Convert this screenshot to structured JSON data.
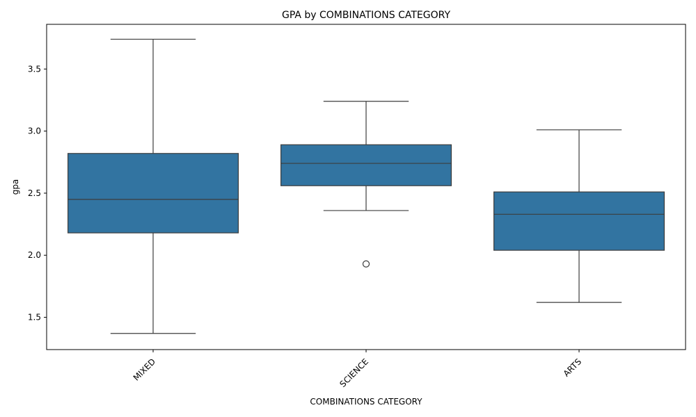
{
  "chart_data": {
    "type": "box",
    "title": "GPA by COMBINATIONS CATEGORY",
    "xlabel": "COMBINATIONS CATEGORY",
    "ylabel": "gpa",
    "ylim": [
      1.24,
      3.86
    ],
    "yticks": [
      1.5,
      2.0,
      2.5,
      3.0,
      3.5
    ],
    "y_tick_labels": [
      "1.5",
      "2.0",
      "2.5",
      "3.0",
      "3.5"
    ],
    "x_tick_rotation": 45,
    "grid": false,
    "box_color": "#3274a1",
    "line_color": "#3d3d3d",
    "categories": [
      "MIXED",
      "SCIENCE",
      "ARTS"
    ],
    "boxes": [
      {
        "category": "MIXED",
        "whisker_low": 1.37,
        "q1": 2.18,
        "median": 2.45,
        "q3": 2.82,
        "whisker_high": 3.74,
        "outliers": []
      },
      {
        "category": "SCIENCE",
        "whisker_low": 2.36,
        "q1": 2.56,
        "median": 2.74,
        "q3": 2.89,
        "whisker_high": 3.24,
        "outliers": [
          1.93
        ]
      },
      {
        "category": "ARTS",
        "whisker_low": 1.62,
        "q1": 2.04,
        "median": 2.33,
        "q3": 2.51,
        "whisker_high": 3.01,
        "outliers": []
      }
    ]
  }
}
